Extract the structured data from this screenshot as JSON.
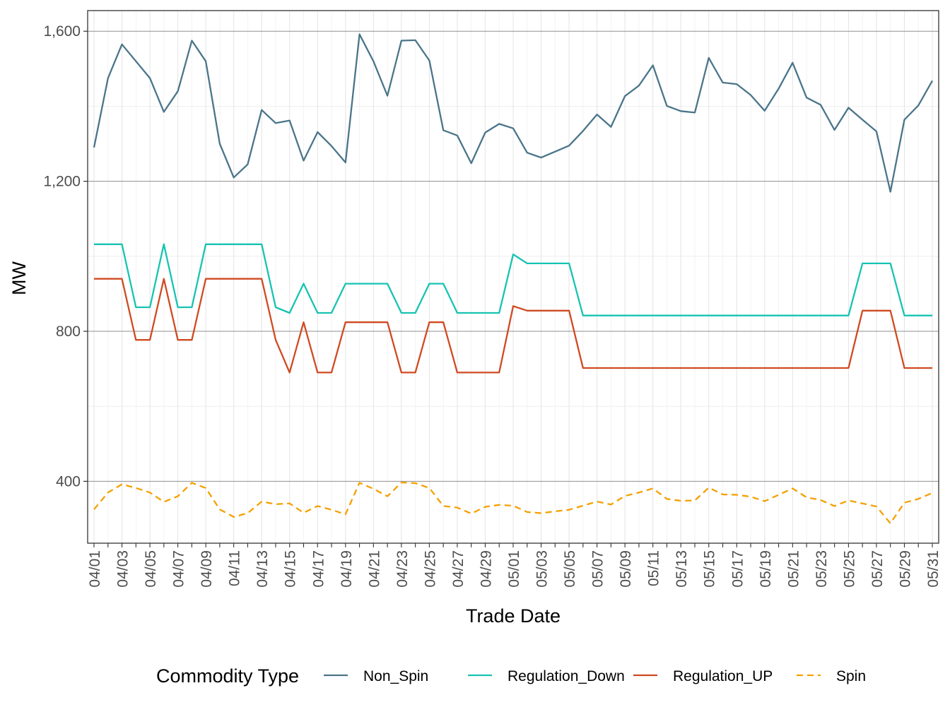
{
  "chart_data": {
    "type": "line",
    "xlabel": "Trade Date",
    "ylabel": "MW",
    "x": [
      "04/01",
      "04/02",
      "04/03",
      "04/04",
      "04/05",
      "04/06",
      "04/07",
      "04/08",
      "04/09",
      "04/10",
      "04/11",
      "04/12",
      "04/13",
      "04/14",
      "04/15",
      "04/16",
      "04/17",
      "04/18",
      "04/19",
      "04/20",
      "04/21",
      "04/22",
      "04/23",
      "04/24",
      "04/25",
      "04/26",
      "04/27",
      "04/28",
      "04/29",
      "04/30",
      "05/01",
      "05/02",
      "05/03",
      "05/04",
      "05/05",
      "05/06",
      "05/07",
      "05/08",
      "05/09",
      "05/10",
      "05/11",
      "05/12",
      "05/13",
      "05/14",
      "05/15",
      "05/16",
      "05/17",
      "05/18",
      "05/19",
      "05/20",
      "05/21",
      "05/22",
      "05/23",
      "05/24",
      "05/25",
      "05/26",
      "05/27",
      "05/28",
      "05/29",
      "05/30",
      "05/31"
    ],
    "x_tick_labels": [
      "04/01",
      "04/03",
      "04/05",
      "04/07",
      "04/09",
      "04/11",
      "04/13",
      "04/15",
      "04/17",
      "04/19",
      "04/21",
      "04/23",
      "04/25",
      "04/27",
      "04/29",
      "05/01",
      "05/03",
      "05/05",
      "05/07",
      "05/09",
      "05/11",
      "05/13",
      "05/15",
      "05/17",
      "05/19",
      "05/21",
      "05/23",
      "05/25",
      "05/27",
      "05/29",
      "05/31"
    ],
    "y_ticks": [
      400,
      800,
      1200,
      1600
    ],
    "y_tick_labels": [
      "400",
      "800",
      "1,200",
      "1,600"
    ],
    "ylim": [
      235,
      1655
    ],
    "grid": true,
    "legend": {
      "title": "Commodity Type",
      "position": "bottom"
    },
    "series": [
      {
        "name": "Non_Spin",
        "color": "#4a7589",
        "dash": "solid",
        "values": [
          1290,
          1475,
          1565,
          1520,
          1475,
          1385,
          1440,
          1575,
          1520,
          1300,
          1210,
          1245,
          1390,
          1355,
          1362,
          1255,
          1331,
          1294,
          1250,
          1592,
          1520,
          1428,
          1575,
          1576,
          1522,
          1336,
          1322,
          1248,
          1330,
          1353,
          1341,
          1276,
          1263,
          1279,
          1295,
          1334,
          1378,
          1345,
          1427,
          1455,
          1509,
          1401,
          1387,
          1383,
          1529,
          1463,
          1459,
          1430,
          1388,
          1447,
          1516,
          1423,
          1404,
          1337,
          1396,
          1364,
          1333,
          1172,
          1364,
          1402,
          1468
        ]
      },
      {
        "name": "Regulation_Down",
        "color": "#17c3b2",
        "dash": "solid",
        "values": [
          1032,
          1032,
          1032,
          864,
          864,
          1032,
          864,
          864,
          1032,
          1032,
          1032,
          1032,
          1032,
          864,
          849,
          927,
          849,
          849,
          927,
          927,
          927,
          927,
          849,
          849,
          927,
          927,
          849,
          849,
          849,
          849,
          1005,
          981,
          981,
          981,
          981,
          842,
          842,
          842,
          842,
          842,
          842,
          842,
          842,
          842,
          842,
          842,
          842,
          842,
          842,
          842,
          842,
          842,
          842,
          842,
          842,
          981,
          981,
          981,
          842,
          842,
          842
        ]
      },
      {
        "name": "Regulation_UP",
        "color": "#cf4a22",
        "dash": "solid",
        "values": [
          940,
          940,
          940,
          777,
          777,
          940,
          777,
          777,
          940,
          940,
          940,
          940,
          940,
          777,
          690,
          824,
          690,
          690,
          824,
          824,
          824,
          824,
          690,
          690,
          824,
          824,
          690,
          690,
          690,
          690,
          867,
          855,
          855,
          855,
          855,
          702,
          702,
          702,
          702,
          702,
          702,
          702,
          702,
          702,
          702,
          702,
          702,
          702,
          702,
          702,
          702,
          702,
          702,
          702,
          702,
          855,
          855,
          855,
          702,
          702,
          702
        ]
      },
      {
        "name": "Spin",
        "color": "#f5a000",
        "dash": "dashed",
        "values": [
          325,
          370,
          392,
          382,
          370,
          345,
          360,
          396,
          382,
          325,
          305,
          315,
          346,
          339,
          341,
          316,
          334,
          324,
          312,
          396,
          380,
          360,
          397,
          395,
          382,
          334,
          330,
          314,
          332,
          337,
          335,
          318,
          315,
          320,
          324,
          335,
          346,
          338,
          361,
          370,
          381,
          353,
          348,
          349,
          383,
          365,
          364,
          359,
          347,
          364,
          381,
          357,
          350,
          334,
          349,
          341,
          333,
          288,
          343,
          353,
          369
        ]
      }
    ]
  }
}
